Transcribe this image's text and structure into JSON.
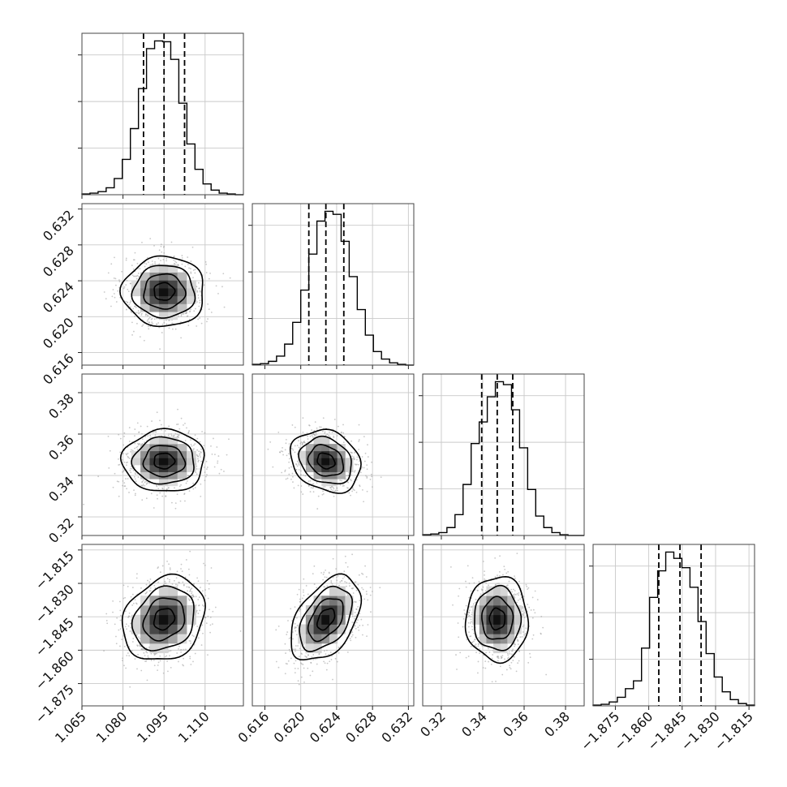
{
  "chart_data": {
    "type": "corner",
    "title": "",
    "grid": true,
    "n_params": 4,
    "params": [
      {
        "mean": 1.095,
        "sd": 0.0075,
        "range": [
          1.065,
          1.124
        ],
        "ticks": [
          1.065,
          1.08,
          1.095,
          1.11
        ],
        "tick_labels": [
          "1.065",
          "1.080",
          "1.095",
          "1.110"
        ],
        "quantiles": [
          1.0875,
          1.095,
          1.1025
        ],
        "hist_counts": [
          1,
          2,
          4,
          9,
          21,
          46,
          86,
          138,
          190,
          200,
          199,
          176,
          119,
          66,
          33,
          14,
          6,
          2,
          1,
          0
        ]
      },
      {
        "mean": 0.6228,
        "sd": 0.00195,
        "range": [
          0.6146,
          0.6326
        ],
        "ticks": [
          0.616,
          0.62,
          0.624,
          0.628,
          0.632
        ],
        "tick_labels": [
          "0.616",
          "0.620",
          "0.624",
          "0.628",
          "0.632"
        ],
        "quantiles": [
          0.6209,
          0.6228,
          0.6248
        ],
        "hist_counts": [
          1,
          2,
          5,
          12,
          28,
          57,
          100,
          148,
          192,
          205,
          201,
          165,
          118,
          74,
          40,
          18,
          8,
          3,
          1,
          0
        ]
      },
      {
        "mean": 0.347,
        "sd": 0.0075,
        "range": [
          0.311,
          0.389
        ],
        "ticks": [
          0.32,
          0.34,
          0.36,
          0.38
        ],
        "tick_labels": [
          "0.32",
          "0.34",
          "0.36",
          "0.38"
        ],
        "quantiles": [
          0.3395,
          0.347,
          0.3545
        ],
        "hist_counts": [
          1,
          2,
          4,
          11,
          29,
          71,
          128,
          158,
          193,
          214,
          210,
          175,
          122,
          64,
          27,
          11,
          4,
          1,
          0,
          0
        ]
      },
      {
        "mean": -1.846,
        "sd": 0.0095,
        "range": [
          -1.885,
          -1.8125
        ],
        "ticks": [
          -1.875,
          -1.86,
          -1.845,
          -1.83,
          -1.815
        ],
        "tick_labels": [
          "−1.875",
          "−1.860",
          "−1.845",
          "−1.830",
          "−1.815"
        ],
        "quantiles": [
          -1.8555,
          -1.846,
          -1.8365
        ],
        "hist_counts": [
          1,
          2,
          5,
          11,
          22,
          32,
          74,
          139,
          173,
          197,
          189,
          177,
          152,
          108,
          67,
          37,
          18,
          8,
          3,
          1
        ]
      }
    ],
    "correlations": [
      {
        "x": 0,
        "y": 1,
        "rho": 0.0
      },
      {
        "x": 0,
        "y": 2,
        "rho": 0.0
      },
      {
        "x": 1,
        "y": 2,
        "rho": -0.2
      },
      {
        "x": 0,
        "y": 3,
        "rho": 0.2
      },
      {
        "x": 1,
        "y": 3,
        "rho": 0.45
      },
      {
        "x": 2,
        "y": 3,
        "rho": 0.0
      }
    ],
    "contour_levels_sigma": [
      0.5,
      1.0,
      1.5,
      2.0
    ],
    "scatter_points_per_panel": 900
  }
}
